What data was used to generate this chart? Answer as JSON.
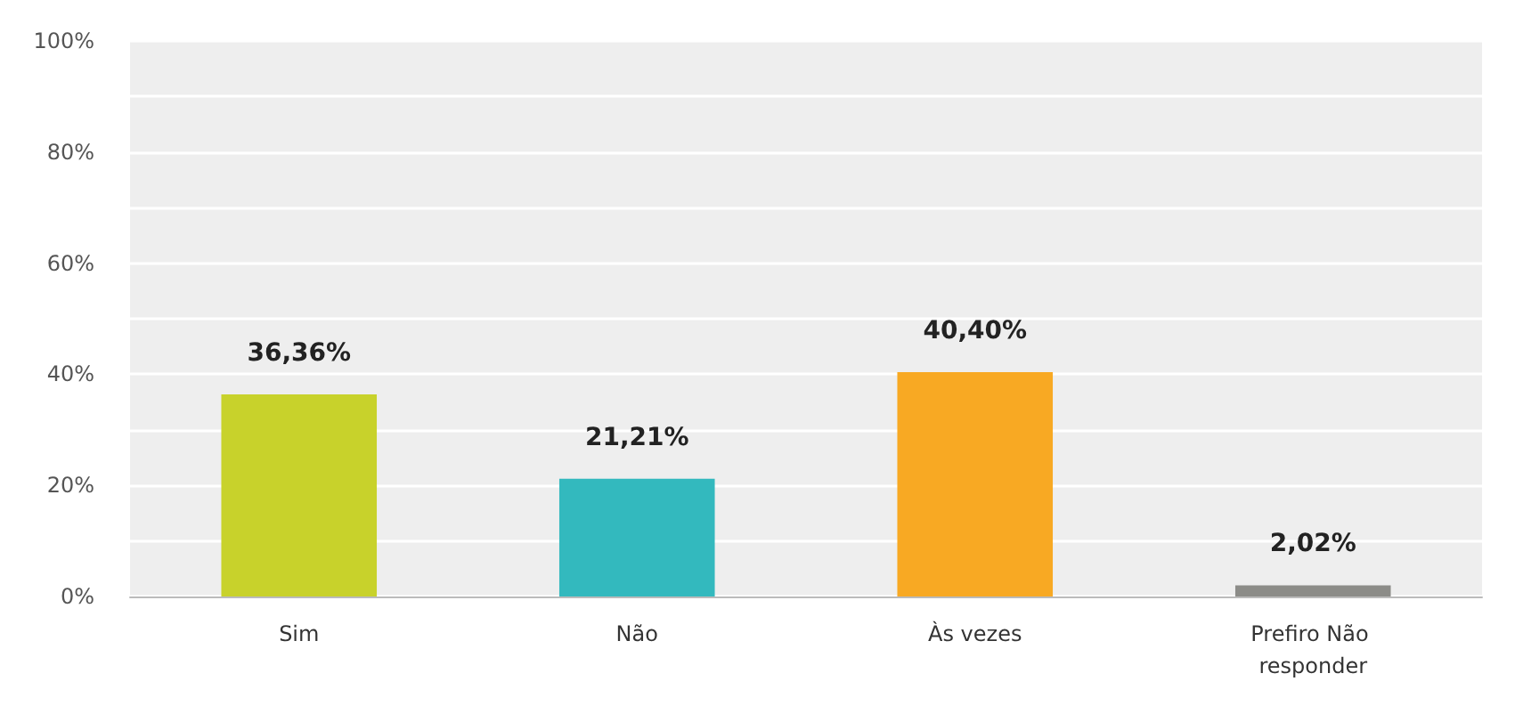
{
  "chart_data": {
    "type": "bar",
    "categories": [
      "Sim",
      "Não",
      "Às vezes",
      "Prefiro Não responder"
    ],
    "values": [
      36.36,
      21.21,
      40.4,
      2.02
    ],
    "colors": [
      "#c8d22b",
      "#33b9be",
      "#f8a923",
      "#8c8c88"
    ],
    "value_labels": [
      "36,36%",
      "21,21%",
      "40,40%",
      "2,02%"
    ],
    "ylim": [
      0,
      100
    ],
    "yticks": [
      {
        "value": 0,
        "label": "0%"
      },
      {
        "value": 10,
        "label": null
      },
      {
        "value": 20,
        "label": "20%"
      },
      {
        "value": 30,
        "label": null
      },
      {
        "value": 40,
        "label": "40%"
      },
      {
        "value": 50,
        "label": null
      },
      {
        "value": 60,
        "label": "60%"
      },
      {
        "value": 70,
        "label": null
      },
      {
        "value": 80,
        "label": "80%"
      },
      {
        "value": 90,
        "label": null
      },
      {
        "value": 100,
        "label": "100%"
      }
    ],
    "grid": "y"
  }
}
